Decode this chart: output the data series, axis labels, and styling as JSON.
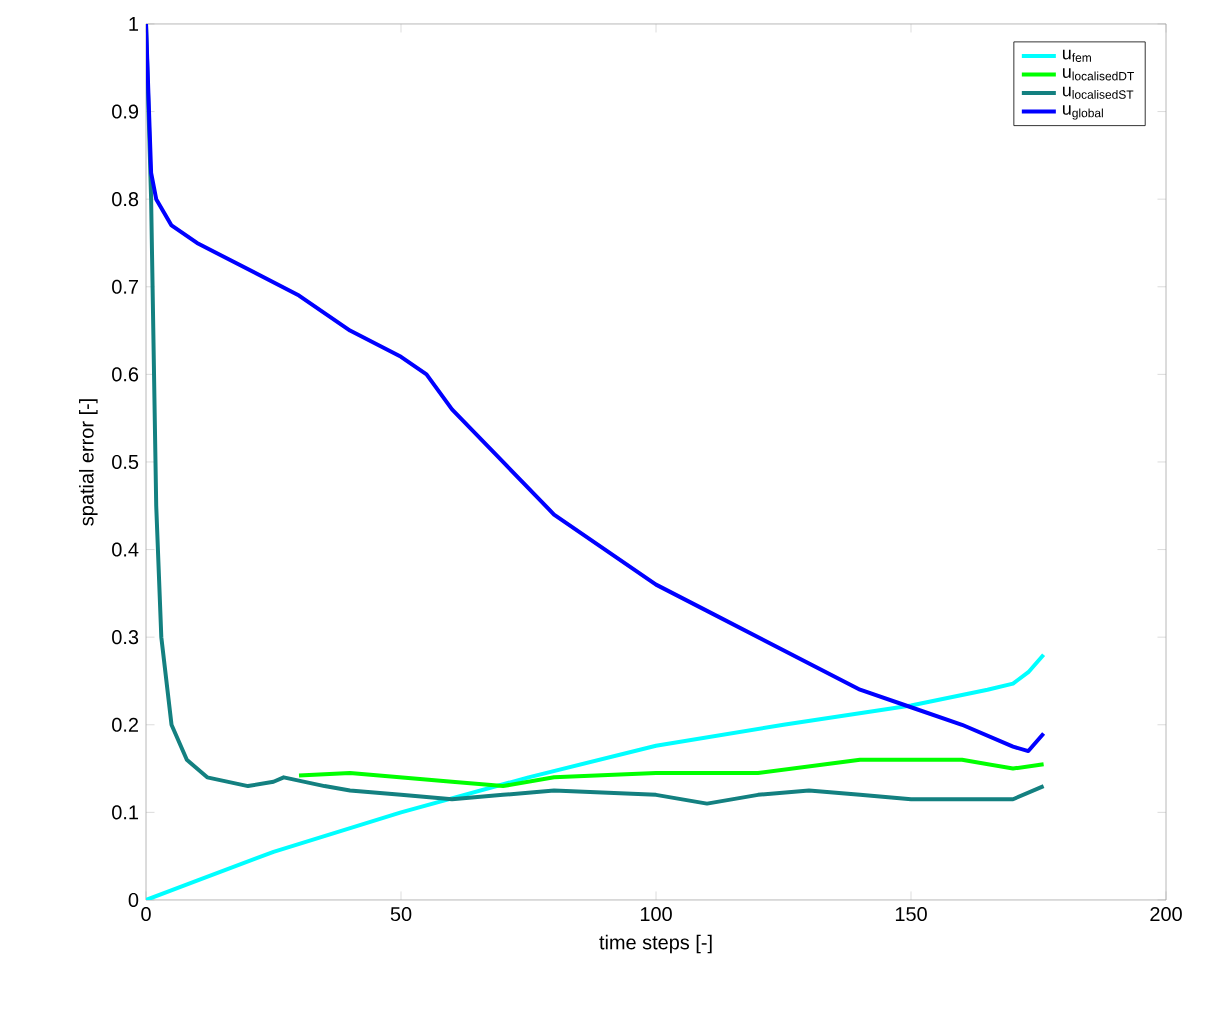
{
  "chart_data": {
    "type": "line",
    "xlabel": "time steps [-]",
    "ylabel": "spatial error [-]",
    "xlim": [
      0,
      200
    ],
    "ylim": [
      0,
      1
    ],
    "xticks": [
      0,
      50,
      100,
      150,
      200
    ],
    "yticks": [
      0,
      0.1,
      0.2,
      0.3,
      0.4,
      0.5,
      0.6,
      0.7,
      0.8,
      0.9,
      1
    ],
    "legend": "top right",
    "grid": false,
    "marker": "none",
    "line_style": "solid",
    "series": [
      {
        "name": "\\mathrm{u}_{\\mathrm{fem}}",
        "color": "#00ffff",
        "x": [
          0,
          10,
          25,
          50,
          75,
          100,
          125,
          150,
          165,
          170,
          173,
          176
        ],
        "values": [
          0,
          0.022,
          0.055,
          0.1,
          0.14,
          0.176,
          0.2,
          0.222,
          0.24,
          0.247,
          0.26,
          0.28
        ]
      },
      {
        "name": "\\mathrm{u}_{\\mathrm{localisedDT}}",
        "color": "#00ff00",
        "x": [
          30,
          40,
          50,
          60,
          70,
          80,
          100,
          120,
          140,
          160,
          170,
          176
        ],
        "values": [
          0.142,
          0.145,
          0.14,
          0.135,
          0.13,
          0.14,
          0.145,
          0.145,
          0.16,
          0.16,
          0.15,
          0.155
        ]
      },
      {
        "name": "\\mathrm{u}_{\\mathrm{localisedST}}",
        "color": "#138080",
        "x": [
          0,
          1,
          2,
          3,
          5,
          8,
          12,
          20,
          25,
          27,
          35,
          40,
          50,
          60,
          70,
          80,
          100,
          110,
          120,
          130,
          140,
          150,
          170,
          176
        ],
        "values": [
          1.0,
          0.8,
          0.45,
          0.3,
          0.2,
          0.16,
          0.14,
          0.13,
          0.135,
          0.14,
          0.13,
          0.125,
          0.12,
          0.115,
          0.12,
          0.125,
          0.12,
          0.11,
          0.12,
          0.125,
          0.12,
          0.115,
          0.115,
          0.13
        ]
      },
      {
        "name": "\\mathrm{u}_{\\mathrm{global}}",
        "color": "#0000ff",
        "x": [
          0,
          1,
          2,
          5,
          10,
          20,
          30,
          40,
          50,
          55,
          60,
          70,
          80,
          90,
          100,
          110,
          120,
          130,
          140,
          150,
          160,
          170,
          173,
          176
        ],
        "values": [
          1.0,
          0.83,
          0.8,
          0.77,
          0.75,
          0.72,
          0.69,
          0.65,
          0.62,
          0.6,
          0.56,
          0.5,
          0.44,
          0.4,
          0.36,
          0.33,
          0.3,
          0.27,
          0.24,
          0.22,
          0.2,
          0.175,
          0.17,
          0.19
        ]
      }
    ]
  }
}
